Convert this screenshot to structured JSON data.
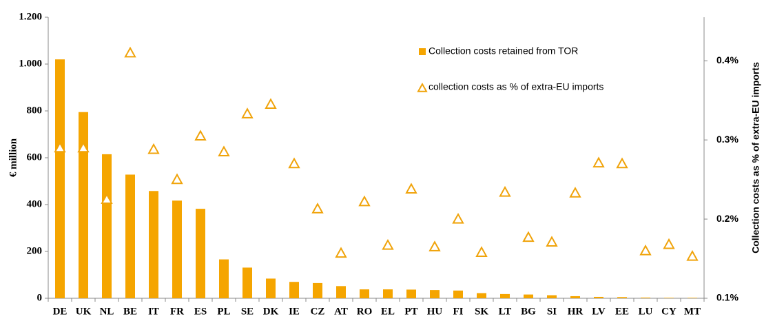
{
  "chart_data": {
    "type": "bar",
    "categories": [
      "DE",
      "UK",
      "NL",
      "BE",
      "IT",
      "FR",
      "ES",
      "PL",
      "SE",
      "DK",
      "IE",
      "CZ",
      "AT",
      "RO",
      "EL",
      "PT",
      "HU",
      "FI",
      "SK",
      "LT",
      "BG",
      "SI",
      "HR",
      "LV",
      "EE",
      "LU",
      "CY",
      "MT"
    ],
    "series": [
      {
        "name": "Collection costs retained from TOR",
        "type": "bar",
        "color": "#f5a500",
        "values": [
          1020,
          795,
          615,
          528,
          458,
          417,
          382,
          166,
          131,
          84,
          70,
          65,
          52,
          38,
          38,
          37,
          35,
          33,
          22,
          18,
          16,
          13,
          9,
          6,
          5,
          3,
          2,
          2
        ]
      },
      {
        "name": "collection costs as % of extra-EU imports",
        "type": "scatter",
        "axis": "y2",
        "color": "#f0a30a",
        "values": [
          0.29,
          0.29,
          0.225,
          0.41,
          0.288,
          0.25,
          0.305,
          0.285,
          0.333,
          0.345,
          0.27,
          0.213,
          0.157,
          0.222,
          0.167,
          0.238,
          0.165,
          0.2,
          0.158,
          0.234,
          0.177,
          0.171,
          0.233,
          0.271,
          0.27,
          0.16,
          0.168,
          0.153
        ]
      }
    ],
    "ylabel": "€ million",
    "y2label": "Collection costs as % of extra-EU imports",
    "ylim": [
      0,
      1200
    ],
    "yticks": [
      0,
      200,
      400,
      600,
      800,
      {
        "value": 1000,
        "label": "1.000"
      },
      {
        "value": 1200,
        "label": "1.200"
      }
    ],
    "y2lim": [
      0.1,
      0.455
    ],
    "y2ticks": [
      {
        "value": 0.1,
        "label": "0.1%"
      },
      {
        "value": 0.2,
        "label": "0.2%"
      },
      {
        "value": 0.3,
        "label": "0.3%"
      },
      {
        "value": 0.4,
        "label": "0.4%"
      }
    ],
    "grid": false,
    "legend": "upper-right"
  }
}
